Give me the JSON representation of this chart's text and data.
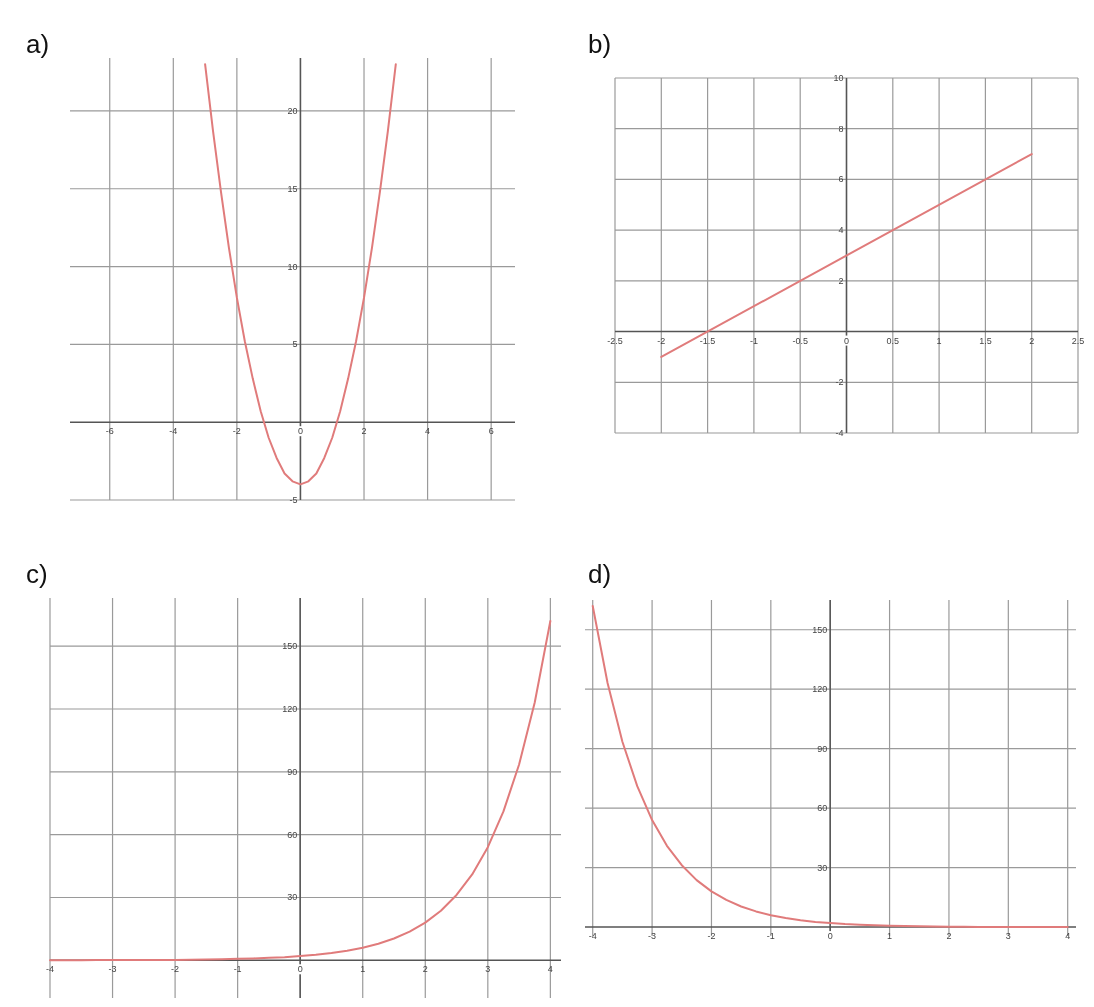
{
  "chart_data": [
    {
      "type": "line",
      "title": "a)",
      "xlim": [
        -7.25,
        6.75
      ],
      "ylim": [
        -5,
        23.4
      ],
      "xticks": [
        -6,
        -4,
        -2,
        0,
        2,
        4,
        6
      ],
      "yticks": [
        -5,
        5,
        10,
        15,
        20
      ],
      "grid": true,
      "tick_labels": "xy",
      "x": [
        -3,
        -2.75,
        -2.5,
        -2.25,
        -2,
        -1.75,
        -1.5,
        -1.25,
        -1,
        -0.75,
        -0.5,
        -0.25,
        0,
        0.25,
        0.5,
        0.75,
        1,
        1.25,
        1.5,
        1.75,
        2,
        2.25,
        2.5,
        2.75,
        3
      ],
      "series": [
        {
          "color": "#e07b7b",
          "values": [
            23,
            18.7,
            14.8,
            11.2,
            8,
            5.2,
            2.8,
            0.7,
            -1,
            -2.3,
            -3.3,
            -3.8,
            -4,
            -3.8,
            -3.3,
            -2.3,
            -1,
            0.7,
            2.8,
            5.2,
            8,
            11.2,
            14.8,
            18.7,
            23
          ]
        }
      ]
    },
    {
      "type": "line",
      "title": "b)",
      "xlim": [
        -2.5,
        2.5
      ],
      "ylim": [
        -4,
        10
      ],
      "xticks": [
        -2.5,
        -2,
        -1.5,
        -1,
        -0.5,
        0,
        0.5,
        1,
        1.5,
        2,
        2.5
      ],
      "yticks": [
        -4,
        -2,
        2,
        4,
        6,
        8,
        10
      ],
      "grid": true,
      "x": [
        -2,
        2
      ],
      "series": [
        {
          "color": "#e07b7b",
          "values": [
            -1,
            7
          ]
        }
      ]
    },
    {
      "type": "line",
      "title": "c)",
      "xlim": [
        -4,
        4.17
      ],
      "ylim": [
        -18,
        173
      ],
      "xticks": [
        -4,
        -3,
        -2,
        -1,
        0,
        1,
        2,
        3,
        4
      ],
      "yticks": [
        30,
        60,
        90,
        120,
        150
      ],
      "grid": true,
      "x": [
        -4,
        -3.75,
        -3.5,
        -3.25,
        -3,
        -2.75,
        -2.5,
        -2.25,
        -2,
        -1.75,
        -1.5,
        -1.25,
        -1,
        -0.75,
        -0.5,
        -0.25,
        0,
        0.25,
        0.5,
        0.75,
        1,
        1.25,
        1.5,
        1.75,
        2,
        2.25,
        2.5,
        2.75,
        3,
        3.25,
        3.5,
        3.75,
        4
      ],
      "series": [
        {
          "color": "#e07b7b",
          "values": [
            0,
            0,
            0,
            0.1,
            0.1,
            0.1,
            0.1,
            0.2,
            0.2,
            0.3,
            0.4,
            0.5,
            0.7,
            0.9,
            1.2,
            1.5,
            2,
            2.6,
            3.5,
            4.6,
            6,
            7.9,
            10.4,
            13.7,
            18,
            23.7,
            31.2,
            41,
            54,
            71.1,
            93.5,
            123.1,
            162
          ]
        }
      ]
    },
    {
      "type": "line",
      "title": "d)",
      "xlim": [
        -4.13,
        4.14
      ],
      "ylim": [
        -4.5,
        165
      ],
      "xticks": [
        -4,
        -3,
        -2,
        -1,
        0,
        1,
        2,
        3,
        4
      ],
      "yticks": [
        30,
        60,
        90,
        120,
        150
      ],
      "grid": true,
      "x": [
        -4,
        -3.75,
        -3.5,
        -3.25,
        -3,
        -2.75,
        -2.5,
        -2.25,
        -2,
        -1.75,
        -1.5,
        -1.25,
        -1,
        -0.75,
        -0.5,
        -0.25,
        0,
        0.25,
        0.5,
        0.75,
        1,
        1.25,
        1.5,
        1.75,
        2,
        2.25,
        2.5,
        2.75,
        3,
        3.25,
        3.5,
        3.75,
        4
      ],
      "series": [
        {
          "color": "#e07b7b",
          "values": [
            162,
            123.1,
            93.5,
            71.1,
            54,
            41,
            31.2,
            23.7,
            18,
            13.7,
            10.4,
            7.9,
            6,
            4.6,
            3.5,
            2.6,
            2,
            1.5,
            1.2,
            0.9,
            0.7,
            0.5,
            0.4,
            0.3,
            0.2,
            0.2,
            0.1,
            0.1,
            0.1,
            0.1,
            0,
            0,
            0
          ]
        }
      ]
    }
  ]
}
